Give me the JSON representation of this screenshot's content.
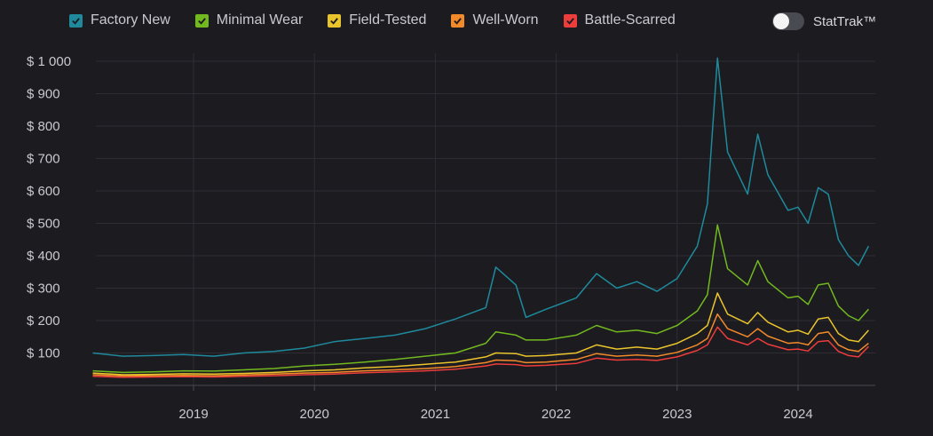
{
  "legend": [
    {
      "label": "Factory New",
      "color": "#1e8a9c",
      "checked": true
    },
    {
      "label": "Minimal Wear",
      "color": "#72b81f",
      "checked": true
    },
    {
      "label": "Field-Tested",
      "color": "#e9c42c",
      "checked": true
    },
    {
      "label": "Well-Worn",
      "color": "#f28a2a",
      "checked": true
    },
    {
      "label": "Battle-Scarred",
      "color": "#ec3c3c",
      "checked": true
    }
  ],
  "stattrak": {
    "label": "StatTrak™",
    "on": false
  },
  "chart_data": {
    "type": "line",
    "xlim": [
      "2018-03",
      "2024-08"
    ],
    "ylim": [
      0,
      1000
    ],
    "y_ticks": [
      100,
      200,
      300,
      400,
      500,
      600,
      700,
      800,
      900,
      1000
    ],
    "y_tick_labels": [
      "$ 100",
      "$ 200",
      "$ 300",
      "$ 400",
      "$ 500",
      "$ 600",
      "$ 700",
      "$ 800",
      "$ 900",
      "$ 1 000"
    ],
    "x_ticks": [
      "2019",
      "2020",
      "2021",
      "2022",
      "2023",
      "2024"
    ],
    "grid": true,
    "legend_position": "top",
    "series": [
      {
        "name": "Factory New",
        "color": "#1e8a9c",
        "points": [
          [
            "2018-03",
            100
          ],
          [
            "2018-06",
            90
          ],
          [
            "2018-09",
            92
          ],
          [
            "2018-12",
            95
          ],
          [
            "2019-03",
            90
          ],
          [
            "2019-06",
            100
          ],
          [
            "2019-09",
            105
          ],
          [
            "2019-12",
            115
          ],
          [
            "2020-03",
            135
          ],
          [
            "2020-06",
            145
          ],
          [
            "2020-09",
            155
          ],
          [
            "2020-12",
            175
          ],
          [
            "2021-03",
            205
          ],
          [
            "2021-06",
            240
          ],
          [
            "2021-07",
            365
          ],
          [
            "2021-09",
            310
          ],
          [
            "2021-10",
            210
          ],
          [
            "2021-12",
            235
          ],
          [
            "2022-03",
            270
          ],
          [
            "2022-05",
            345
          ],
          [
            "2022-07",
            300
          ],
          [
            "2022-09",
            320
          ],
          [
            "2022-11",
            290
          ],
          [
            "2023-01",
            330
          ],
          [
            "2023-03",
            430
          ],
          [
            "2023-04",
            560
          ],
          [
            "2023-05",
            1010
          ],
          [
            "2023-06",
            720
          ],
          [
            "2023-08",
            590
          ],
          [
            "2023-09",
            775
          ],
          [
            "2023-10",
            650
          ],
          [
            "2023-12",
            540
          ],
          [
            "2024-01",
            550
          ],
          [
            "2024-02",
            500
          ],
          [
            "2024-03",
            610
          ],
          [
            "2024-04",
            590
          ],
          [
            "2024-05",
            450
          ],
          [
            "2024-06",
            400
          ],
          [
            "2024-07",
            370
          ],
          [
            "2024-08",
            430
          ]
        ]
      },
      {
        "name": "Minimal Wear",
        "color": "#72b81f",
        "points": [
          [
            "2018-03",
            45
          ],
          [
            "2018-06",
            40
          ],
          [
            "2018-09",
            42
          ],
          [
            "2018-12",
            45
          ],
          [
            "2019-03",
            44
          ],
          [
            "2019-06",
            48
          ],
          [
            "2019-09",
            52
          ],
          [
            "2019-12",
            60
          ],
          [
            "2020-03",
            65
          ],
          [
            "2020-06",
            72
          ],
          [
            "2020-09",
            80
          ],
          [
            "2020-12",
            90
          ],
          [
            "2021-03",
            100
          ],
          [
            "2021-06",
            130
          ],
          [
            "2021-07",
            165
          ],
          [
            "2021-09",
            155
          ],
          [
            "2021-10",
            140
          ],
          [
            "2021-12",
            140
          ],
          [
            "2022-03",
            155
          ],
          [
            "2022-05",
            185
          ],
          [
            "2022-07",
            165
          ],
          [
            "2022-09",
            170
          ],
          [
            "2022-11",
            160
          ],
          [
            "2023-01",
            185
          ],
          [
            "2023-03",
            230
          ],
          [
            "2023-04",
            280
          ],
          [
            "2023-05",
            495
          ],
          [
            "2023-06",
            360
          ],
          [
            "2023-08",
            310
          ],
          [
            "2023-09",
            385
          ],
          [
            "2023-10",
            320
          ],
          [
            "2023-12",
            270
          ],
          [
            "2024-01",
            275
          ],
          [
            "2024-02",
            250
          ],
          [
            "2024-03",
            310
          ],
          [
            "2024-04",
            315
          ],
          [
            "2024-05",
            245
          ],
          [
            "2024-06",
            215
          ],
          [
            "2024-07",
            200
          ],
          [
            "2024-08",
            235
          ]
        ]
      },
      {
        "name": "Field-Tested",
        "color": "#e9c42c",
        "points": [
          [
            "2018-03",
            38
          ],
          [
            "2018-06",
            33
          ],
          [
            "2018-09",
            34
          ],
          [
            "2018-12",
            36
          ],
          [
            "2019-03",
            35
          ],
          [
            "2019-06",
            37
          ],
          [
            "2019-09",
            40
          ],
          [
            "2019-12",
            45
          ],
          [
            "2020-03",
            48
          ],
          [
            "2020-06",
            54
          ],
          [
            "2020-09",
            58
          ],
          [
            "2020-12",
            65
          ],
          [
            "2021-03",
            72
          ],
          [
            "2021-06",
            88
          ],
          [
            "2021-07",
            100
          ],
          [
            "2021-09",
            98
          ],
          [
            "2021-10",
            90
          ],
          [
            "2021-12",
            92
          ],
          [
            "2022-03",
            100
          ],
          [
            "2022-05",
            125
          ],
          [
            "2022-07",
            112
          ],
          [
            "2022-09",
            118
          ],
          [
            "2022-11",
            112
          ],
          [
            "2023-01",
            130
          ],
          [
            "2023-03",
            160
          ],
          [
            "2023-04",
            185
          ],
          [
            "2023-05",
            285
          ],
          [
            "2023-06",
            220
          ],
          [
            "2023-08",
            190
          ],
          [
            "2023-09",
            225
          ],
          [
            "2023-10",
            195
          ],
          [
            "2023-12",
            165
          ],
          [
            "2024-01",
            170
          ],
          [
            "2024-02",
            158
          ],
          [
            "2024-03",
            205
          ],
          [
            "2024-04",
            210
          ],
          [
            "2024-05",
            160
          ],
          [
            "2024-06",
            140
          ],
          [
            "2024-07",
            135
          ],
          [
            "2024-08",
            170
          ]
        ]
      },
      {
        "name": "Well-Worn",
        "color": "#f28a2a",
        "points": [
          [
            "2018-03",
            33
          ],
          [
            "2018-06",
            29
          ],
          [
            "2018-09",
            30
          ],
          [
            "2018-12",
            31
          ],
          [
            "2019-03",
            30
          ],
          [
            "2019-06",
            32
          ],
          [
            "2019-09",
            35
          ],
          [
            "2019-12",
            38
          ],
          [
            "2020-03",
            40
          ],
          [
            "2020-06",
            45
          ],
          [
            "2020-09",
            48
          ],
          [
            "2020-12",
            52
          ],
          [
            "2021-03",
            58
          ],
          [
            "2021-06",
            70
          ],
          [
            "2021-07",
            78
          ],
          [
            "2021-09",
            76
          ],
          [
            "2021-10",
            70
          ],
          [
            "2021-12",
            72
          ],
          [
            "2022-03",
            80
          ],
          [
            "2022-05",
            98
          ],
          [
            "2022-07",
            90
          ],
          [
            "2022-09",
            94
          ],
          [
            "2022-11",
            90
          ],
          [
            "2023-01",
            102
          ],
          [
            "2023-03",
            125
          ],
          [
            "2023-04",
            145
          ],
          [
            "2023-05",
            220
          ],
          [
            "2023-06",
            175
          ],
          [
            "2023-08",
            150
          ],
          [
            "2023-09",
            175
          ],
          [
            "2023-10",
            152
          ],
          [
            "2023-12",
            130
          ],
          [
            "2024-01",
            132
          ],
          [
            "2024-02",
            125
          ],
          [
            "2024-03",
            160
          ],
          [
            "2024-04",
            165
          ],
          [
            "2024-05",
            125
          ],
          [
            "2024-06",
            110
          ],
          [
            "2024-07",
            105
          ],
          [
            "2024-08",
            130
          ]
        ]
      },
      {
        "name": "Battle-Scarred",
        "color": "#ec3c3c",
        "points": [
          [
            "2018-03",
            28
          ],
          [
            "2018-06",
            25
          ],
          [
            "2018-09",
            26
          ],
          [
            "2018-12",
            27
          ],
          [
            "2019-03",
            26
          ],
          [
            "2019-06",
            28
          ],
          [
            "2019-09",
            30
          ],
          [
            "2019-12",
            33
          ],
          [
            "2020-03",
            35
          ],
          [
            "2020-06",
            39
          ],
          [
            "2020-09",
            42
          ],
          [
            "2020-12",
            45
          ],
          [
            "2021-03",
            50
          ],
          [
            "2021-06",
            60
          ],
          [
            "2021-07",
            66
          ],
          [
            "2021-09",
            64
          ],
          [
            "2021-10",
            60
          ],
          [
            "2021-12",
            62
          ],
          [
            "2022-03",
            68
          ],
          [
            "2022-05",
            84
          ],
          [
            "2022-07",
            78
          ],
          [
            "2022-09",
            80
          ],
          [
            "2022-11",
            77
          ],
          [
            "2023-01",
            88
          ],
          [
            "2023-03",
            108
          ],
          [
            "2023-04",
            125
          ],
          [
            "2023-05",
            180
          ],
          [
            "2023-06",
            145
          ],
          [
            "2023-08",
            125
          ],
          [
            "2023-09",
            145
          ],
          [
            "2023-10",
            127
          ],
          [
            "2023-12",
            110
          ],
          [
            "2024-01",
            112
          ],
          [
            "2024-02",
            106
          ],
          [
            "2024-03",
            135
          ],
          [
            "2024-04",
            138
          ],
          [
            "2024-05",
            105
          ],
          [
            "2024-06",
            92
          ],
          [
            "2024-07",
            88
          ],
          [
            "2024-08",
            120
          ]
        ]
      }
    ]
  }
}
